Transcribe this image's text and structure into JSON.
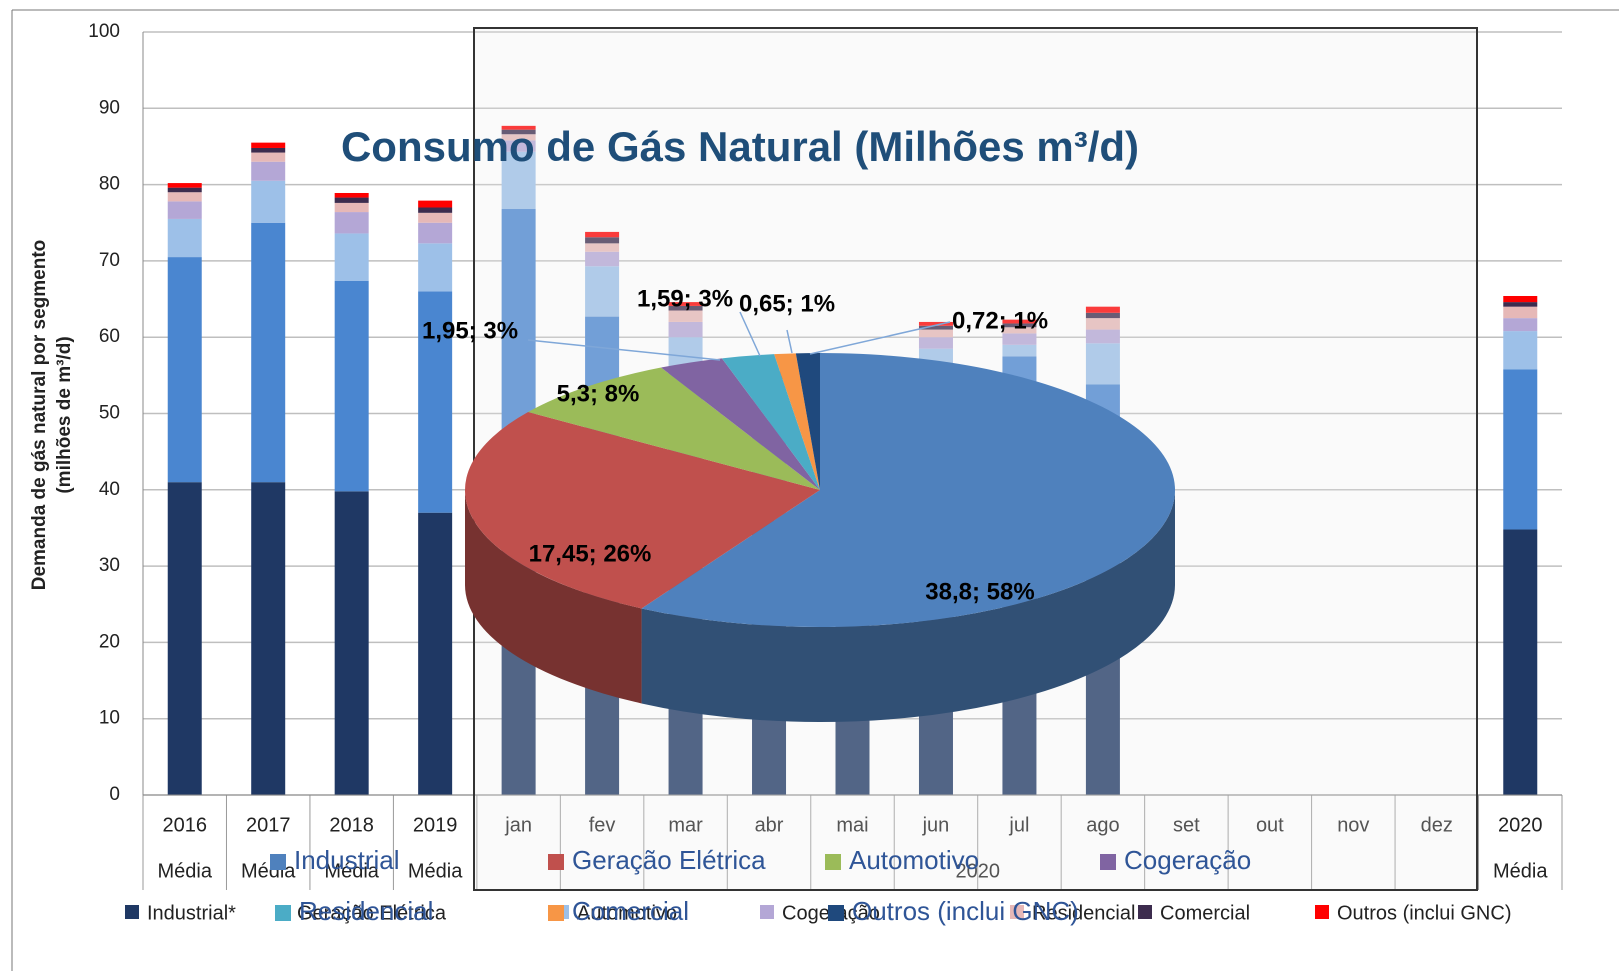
{
  "chart_data": [
    {
      "type": "bar",
      "ylabel": [
        "Demanda de gás natural por segmento",
        "(milhões de m³/d)"
      ],
      "categories": [
        "2016",
        "2017",
        "2018",
        "2019",
        "jan",
        "fev",
        "mar",
        "abr",
        "mai",
        "jun",
        "jul",
        "ago",
        "set",
        "out",
        "nov",
        "dez",
        "2020"
      ],
      "sublabels": [
        "Média",
        "Média",
        "Média",
        "Média",
        null,
        null,
        null,
        null,
        null,
        null,
        null,
        null,
        null,
        null,
        null,
        null,
        "Média"
      ],
      "group_label": "2020",
      "ylim": [
        0,
        100
      ],
      "yticks": [
        0,
        10,
        20,
        30,
        40,
        50,
        60,
        70,
        80,
        90,
        100
      ],
      "grid": true,
      "series": [
        {
          "name": "Industrial*",
          "color": "#1f3864",
          "values": [
            41,
            41,
            39.8,
            37,
            40,
            40,
            37,
            36,
            36,
            37,
            37,
            38,
            null,
            null,
            null,
            null,
            34.8
          ]
        },
        {
          "name": "Geração Elétrica",
          "color": "#4a86d0",
          "values": [
            29.5,
            34,
            27.6,
            29,
            36.8,
            22.7,
            19,
            13,
            14,
            19.5,
            20.5,
            15.8,
            null,
            null,
            null,
            null,
            21
          ]
        },
        {
          "name": "Automotivo",
          "color": "#9dc0e8",
          "values": [
            5,
            5.5,
            6.2,
            6.3,
            7.5,
            6.6,
            4,
            2.5,
            2.8,
            2,
            1.5,
            5.4,
            null,
            null,
            null,
            null,
            5
          ]
        },
        {
          "name": "Cogeração",
          "color": "#b4a7d6",
          "values": [
            2.3,
            2.5,
            2.8,
            2.7,
            1.5,
            1.9,
            2,
            1.8,
            1.8,
            1.5,
            1.5,
            1.8,
            null,
            null,
            null,
            null,
            1.7
          ]
        },
        {
          "name": "Residencial",
          "color": "#e6b8b7",
          "values": [
            1.2,
            1.2,
            1.2,
            1.3,
            0.8,
            1.1,
            1.5,
            1.2,
            1.2,
            1,
            0.8,
            1.5,
            null,
            null,
            null,
            null,
            1.5
          ]
        },
        {
          "name": "Comercial",
          "color": "#3d2c4e",
          "values": [
            0.6,
            0.6,
            0.7,
            0.7,
            0.6,
            0.8,
            0.6,
            0.5,
            0.5,
            0.5,
            0.5,
            0.7,
            null,
            null,
            null,
            null,
            0.6
          ]
        },
        {
          "name": "Outros (inclui GNC)",
          "color": "#ff0000",
          "values": [
            0.6,
            0.7,
            0.6,
            0.9,
            0.5,
            0.7,
            0.5,
            0.5,
            0.5,
            0.5,
            0.5,
            0.8,
            null,
            null,
            null,
            null,
            0.8
          ]
        }
      ]
    },
    {
      "type": "pie",
      "title": "Consumo de Gás Natural (Milhões m³/d)",
      "categories": [
        "Industrial",
        "Geração Elétrica",
        "Automotivo",
        "Cogeração",
        "Residencial",
        "Comercial",
        "Outros (inclui GNC)"
      ],
      "colors": [
        "#4f81bd",
        "#c0504d",
        "#9bbb59",
        "#8064a2",
        "#4bacc6",
        "#f79646",
        "#1f497d"
      ],
      "values": [
        38.8,
        17.45,
        5.3,
        1.95,
        1.59,
        0.65,
        0.72
      ],
      "value_labels": [
        "38,8; 58%",
        "17,45; 26%",
        "5,3; 8%",
        "1,95; 3%",
        "1,59; 3%",
        "0,65; 1%",
        "0,72; 1%"
      ]
    }
  ]
}
